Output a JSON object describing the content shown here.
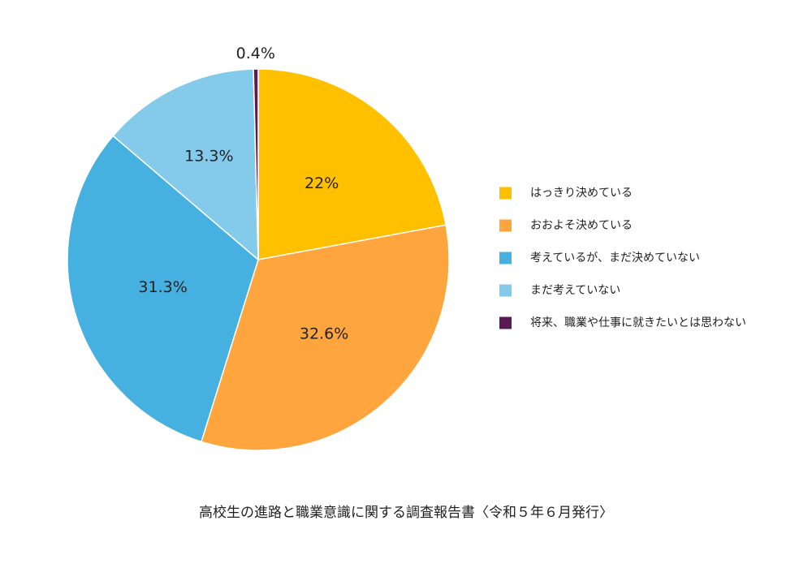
{
  "chart_data": {
    "type": "pie",
    "categories": [
      "はっきり決めている",
      "おおよそ決めている",
      "考えているが、まだ決めていない",
      "まだ考えていない",
      "将来、職業や仕事に就きたいとは思わない"
    ],
    "values": [
      22,
      32.6,
      31.3,
      13.3,
      0.4
    ],
    "labels": [
      "22%",
      "32.6%",
      "31.3%",
      "13.3%",
      "0.4%"
    ],
    "colors": [
      "#FFC000",
      "#FFA53D",
      "#46B0E0",
      "#84CAEB",
      "#5A1A55"
    ],
    "legend_position": "right",
    "source": "高校生の進路と職業意識に関する調査報告書〈令和５年６月発行〉"
  }
}
